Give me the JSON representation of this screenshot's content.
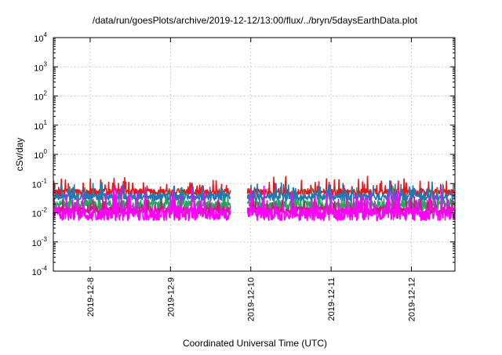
{
  "chart_data": {
    "type": "line",
    "title": "/data/run/goesPlots/archive/2019-12-12/13:00/flux/../bryn/5daysEarthData.plot",
    "xlabel": "Coordinated Universal Time (UTC)",
    "ylabel": "cSv/day",
    "yscale": "log",
    "ylim": [
      0.0001,
      10000
    ],
    "xlim": [
      "2019-12-07 13:00",
      "2019-12-12 13:00"
    ],
    "y_ticks": [
      {
        "value": 0.0001,
        "base": "10",
        "exp": "-4"
      },
      {
        "value": 0.001,
        "base": "10",
        "exp": "-3"
      },
      {
        "value": 0.01,
        "base": "10",
        "exp": "-2"
      },
      {
        "value": 0.1,
        "base": "10",
        "exp": "-1"
      },
      {
        "value": 1,
        "base": "10",
        "exp": "0"
      },
      {
        "value": 10,
        "base": "10",
        "exp": "1"
      },
      {
        "value": 100,
        "base": "10",
        "exp": "2"
      },
      {
        "value": 1000,
        "base": "10",
        "exp": "3"
      },
      {
        "value": 10000,
        "base": "10",
        "exp": "4"
      }
    ],
    "x_ticks": [
      {
        "label": "2019-12-8",
        "value": "2019-12-08 00:00"
      },
      {
        "label": "2019-12-9",
        "value": "2019-12-09 00:00"
      },
      {
        "label": "2019-12-10",
        "value": "2019-12-10 00:00"
      },
      {
        "label": "2019-12-11",
        "value": "2019-12-11 00:00"
      },
      {
        "label": "2019-12-12",
        "value": "2019-12-12 00:00"
      }
    ],
    "grid": true,
    "data_gap": [
      "2019-12-09 18:00",
      "2019-12-09 23:00"
    ],
    "series": [
      {
        "color": "#e31a1c",
        "base": 0.05,
        "spread": 0.25,
        "spike": 0.5,
        "seed": 11
      },
      {
        "color": "#2ca25f",
        "base": 0.018,
        "spread": 0.35,
        "spike": 0.6,
        "seed": 23
      },
      {
        "color": "#c51b7d",
        "base": 0.012,
        "spread": 0.25,
        "spike": 0.4,
        "seed": 37
      },
      {
        "color": "#1f78b4",
        "base": 0.035,
        "spread": 0.25,
        "spike": 0.45,
        "seed": 51
      },
      {
        "color": "#ff00ff",
        "base": 0.009,
        "spread": 0.45,
        "spike": 0.85,
        "seed": 73
      }
    ]
  }
}
